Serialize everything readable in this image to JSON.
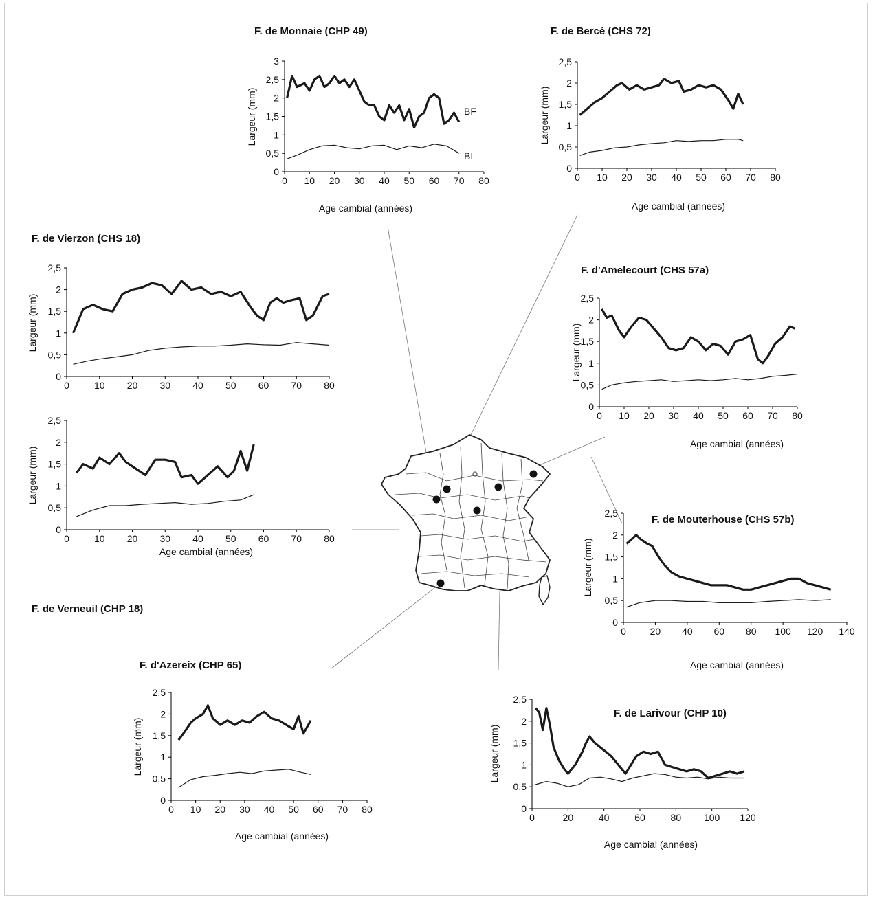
{
  "colors": {
    "bf_line": "#1a1a1a",
    "bi_line": "#1a1a1a",
    "map_stroke": "#222222",
    "site_marker": "#111111",
    "connector": "#777777"
  },
  "map": {
    "type": "outline-map-of-france",
    "site_markers": 7
  },
  "chart_data": [
    {
      "id": "monnaie",
      "type": "line",
      "title": "F. de Monnaie (CHP 49)",
      "xlabel": "Age cambial (années)",
      "ylabel": "Largeur (mm)",
      "xlim": [
        0,
        80
      ],
      "xticks": [
        "0",
        "10",
        "20",
        "30",
        "40",
        "50",
        "60",
        "70",
        "80"
      ],
      "ylim": [
        0,
        3
      ],
      "yticks": [
        "0",
        "0,5",
        "1",
        "1,5",
        "2",
        "2,5",
        "3"
      ],
      "annotations": [
        "BF",
        "BI"
      ],
      "series": [
        {
          "name": "BF",
          "x": [
            1,
            3,
            5,
            8,
            10,
            12,
            14,
            16,
            18,
            20,
            22,
            24,
            26,
            28,
            30,
            32,
            34,
            36,
            38,
            40,
            42,
            44,
            46,
            48,
            50,
            52,
            54,
            56,
            58,
            60,
            62,
            64,
            66,
            68,
            70
          ],
          "y": [
            2.0,
            2.6,
            2.3,
            2.4,
            2.2,
            2.5,
            2.6,
            2.3,
            2.4,
            2.6,
            2.4,
            2.5,
            2.3,
            2.5,
            2.2,
            1.9,
            1.8,
            1.8,
            1.5,
            1.4,
            1.8,
            1.6,
            1.8,
            1.4,
            1.7,
            1.2,
            1.5,
            1.6,
            2.0,
            2.1,
            2.0,
            1.3,
            1.4,
            1.6,
            1.35
          ]
        },
        {
          "name": "BI",
          "x": [
            1,
            5,
            10,
            15,
            20,
            25,
            30,
            35,
            40,
            45,
            50,
            55,
            60,
            65,
            70
          ],
          "y": [
            0.35,
            0.45,
            0.6,
            0.7,
            0.72,
            0.65,
            0.62,
            0.7,
            0.72,
            0.6,
            0.7,
            0.65,
            0.75,
            0.7,
            0.5
          ]
        }
      ]
    },
    {
      "id": "berce",
      "type": "line",
      "title": "F. de Bercé (CHS 72)",
      "xlabel": "Age cambial (années)",
      "ylabel": "Largeur (mm)",
      "xlim": [
        0,
        80
      ],
      "xticks": [
        "0",
        "10",
        "20",
        "30",
        "40",
        "50",
        "60",
        "70",
        "80"
      ],
      "ylim": [
        0,
        2.5
      ],
      "yticks": [
        "0",
        "0,5",
        "1",
        "1,5",
        "2",
        "2,5"
      ],
      "series": [
        {
          "x": [
            1,
            4,
            7,
            10,
            13,
            16,
            18,
            21,
            24,
            27,
            30,
            33,
            35,
            38,
            41,
            43,
            46,
            49,
            52,
            55,
            58,
            61,
            63,
            65,
            67
          ],
          "y": [
            1.25,
            1.4,
            1.55,
            1.65,
            1.8,
            1.95,
            2.0,
            1.85,
            1.95,
            1.85,
            1.9,
            1.95,
            2.1,
            2.0,
            2.05,
            1.8,
            1.85,
            1.95,
            1.9,
            1.95,
            1.85,
            1.6,
            1.4,
            1.75,
            1.5
          ]
        },
        {
          "x": [
            1,
            5,
            10,
            15,
            20,
            25,
            30,
            35,
            40,
            45,
            50,
            55,
            60,
            65,
            67
          ],
          "y": [
            0.3,
            0.38,
            0.42,
            0.48,
            0.5,
            0.55,
            0.58,
            0.6,
            0.65,
            0.63,
            0.65,
            0.65,
            0.68,
            0.68,
            0.65
          ]
        }
      ]
    },
    {
      "id": "vierzon",
      "type": "line",
      "title": "F. de Vierzon (CHS 18)",
      "xlabel": "",
      "ylabel": "Largeur (mm)",
      "xlim": [
        0,
        80
      ],
      "xticks": [
        "0",
        "10",
        "20",
        "30",
        "40",
        "50",
        "60",
        "70",
        "80"
      ],
      "ylim": [
        0,
        2.5
      ],
      "yticks": [
        "0",
        "0,5",
        "1",
        "1,5",
        "2",
        "2,5"
      ],
      "series": [
        {
          "x": [
            2,
            5,
            8,
            11,
            14,
            17,
            20,
            23,
            26,
            29,
            32,
            35,
            38,
            41,
            44,
            47,
            50,
            53,
            56,
            58,
            60,
            62,
            64,
            66,
            68,
            71,
            73,
            75,
            78,
            80
          ],
          "y": [
            1.0,
            1.55,
            1.65,
            1.55,
            1.5,
            1.9,
            2.0,
            2.05,
            2.15,
            2.1,
            1.9,
            2.2,
            2.0,
            2.05,
            1.9,
            1.95,
            1.85,
            1.95,
            1.6,
            1.4,
            1.3,
            1.7,
            1.8,
            1.7,
            1.75,
            1.8,
            1.3,
            1.4,
            1.85,
            1.9
          ]
        },
        {
          "x": [
            2,
            6,
            10,
            15,
            20,
            25,
            30,
            35,
            40,
            45,
            50,
            55,
            60,
            65,
            70,
            75,
            80
          ],
          "y": [
            0.28,
            0.35,
            0.4,
            0.45,
            0.5,
            0.6,
            0.65,
            0.68,
            0.7,
            0.7,
            0.72,
            0.75,
            0.73,
            0.72,
            0.78,
            0.75,
            0.72
          ]
        }
      ]
    },
    {
      "id": "verneuil",
      "type": "line",
      "title": "F. de Verneuil (CHP 18)",
      "xlabel": "Age cambial (années)",
      "ylabel": "Largeur (mm)",
      "xlim": [
        0,
        80
      ],
      "xticks": [
        "0",
        "10",
        "20",
        "30",
        "40",
        "50",
        "60",
        "70",
        "80"
      ],
      "ylim": [
        0,
        2.5
      ],
      "yticks": [
        "0",
        "0,5",
        "1",
        "1,5",
        "2",
        "2,5"
      ],
      "series": [
        {
          "x": [
            3,
            5,
            8,
            10,
            13,
            16,
            18,
            21,
            24,
            27,
            30,
            33,
            35,
            38,
            40,
            43,
            46,
            49,
            51,
            53,
            55,
            57
          ],
          "y": [
            1.3,
            1.5,
            1.4,
            1.65,
            1.5,
            1.75,
            1.55,
            1.4,
            1.25,
            1.6,
            1.6,
            1.55,
            1.2,
            1.25,
            1.05,
            1.25,
            1.45,
            1.2,
            1.35,
            1.8,
            1.35,
            1.95
          ]
        },
        {
          "x": [
            3,
            8,
            13,
            18,
            23,
            28,
            33,
            38,
            43,
            48,
            53,
            57
          ],
          "y": [
            0.3,
            0.45,
            0.55,
            0.55,
            0.58,
            0.6,
            0.62,
            0.58,
            0.6,
            0.65,
            0.68,
            0.8
          ]
        }
      ]
    },
    {
      "id": "amelecourt",
      "type": "line",
      "title": "F. d'Amelecourt (CHS 57a)",
      "xlabel": "Age cambial (années)",
      "ylabel": "Largeur (mm)",
      "xlim": [
        0,
        80
      ],
      "xticks": [
        "0",
        "10",
        "20",
        "30",
        "40",
        "50",
        "60",
        "70",
        "80"
      ],
      "ylim": [
        0,
        2.5
      ],
      "yticks": [
        "0",
        "0,5",
        "1",
        "1,5",
        "2",
        "2,5"
      ],
      "series": [
        {
          "x": [
            1,
            3,
            5,
            8,
            10,
            13,
            16,
            19,
            22,
            25,
            28,
            31,
            34,
            37,
            40,
            43,
            46,
            49,
            52,
            55,
            58,
            61,
            64,
            66,
            68,
            71,
            74,
            77,
            79
          ],
          "y": [
            2.25,
            2.05,
            2.1,
            1.75,
            1.6,
            1.85,
            2.05,
            2.0,
            1.8,
            1.6,
            1.35,
            1.3,
            1.35,
            1.6,
            1.5,
            1.3,
            1.45,
            1.4,
            1.2,
            1.5,
            1.55,
            1.65,
            1.1,
            1.0,
            1.15,
            1.45,
            1.6,
            1.85,
            1.8
          ]
        },
        {
          "x": [
            1,
            5,
            10,
            15,
            20,
            25,
            30,
            35,
            40,
            45,
            50,
            55,
            60,
            65,
            70,
            75,
            80
          ],
          "y": [
            0.4,
            0.5,
            0.55,
            0.58,
            0.6,
            0.62,
            0.58,
            0.6,
            0.62,
            0.6,
            0.62,
            0.65,
            0.62,
            0.65,
            0.7,
            0.72,
            0.75
          ]
        }
      ]
    },
    {
      "id": "mouterhouse",
      "type": "line",
      "title": "F. de Mouterhouse (CHS 57b)",
      "xlabel": "Age cambial (années)",
      "ylabel": "Largeur (mm)",
      "xlim": [
        0,
        140
      ],
      "xticks": [
        "0",
        "20",
        "40",
        "60",
        "80",
        "100",
        "120",
        "140"
      ],
      "ylim": [
        0,
        2.5
      ],
      "yticks": [
        "0",
        "0,5",
        "1",
        "1,5",
        "2",
        "2,5"
      ],
      "series": [
        {
          "x": [
            2,
            5,
            8,
            11,
            15,
            18,
            22,
            26,
            30,
            35,
            40,
            45,
            50,
            55,
            60,
            65,
            70,
            75,
            80,
            85,
            90,
            95,
            100,
            105,
            110,
            115,
            120,
            125,
            130
          ],
          "y": [
            1.8,
            1.9,
            2.0,
            1.9,
            1.8,
            1.75,
            1.5,
            1.3,
            1.15,
            1.05,
            1.0,
            0.95,
            0.9,
            0.85,
            0.85,
            0.85,
            0.8,
            0.75,
            0.75,
            0.8,
            0.85,
            0.9,
            0.95,
            1.0,
            1.0,
            0.9,
            0.85,
            0.8,
            0.75
          ]
        },
        {
          "x": [
            2,
            10,
            20,
            30,
            40,
            50,
            60,
            70,
            80,
            90,
            100,
            110,
            120,
            130
          ],
          "y": [
            0.35,
            0.45,
            0.5,
            0.5,
            0.48,
            0.48,
            0.45,
            0.45,
            0.45,
            0.48,
            0.5,
            0.52,
            0.5,
            0.52
          ]
        }
      ]
    },
    {
      "id": "azereix",
      "type": "line",
      "title": "F. d'Azereix (CHP 65)",
      "xlabel": "Age cambial (années)",
      "ylabel": "Largeur (mm)",
      "xlim": [
        0,
        80
      ],
      "xticks": [
        "0",
        "10",
        "20",
        "30",
        "40",
        "50",
        "60",
        "70",
        "80"
      ],
      "ylim": [
        0,
        2.5
      ],
      "yticks": [
        "0",
        "0,5",
        "1",
        "1,5",
        "2",
        "2,5"
      ],
      "series": [
        {
          "x": [
            3,
            5,
            8,
            10,
            13,
            15,
            17,
            20,
            23,
            26,
            29,
            32,
            35,
            38,
            41,
            44,
            47,
            50,
            52,
            54,
            57
          ],
          "y": [
            1.4,
            1.55,
            1.8,
            1.9,
            2.0,
            2.2,
            1.9,
            1.75,
            1.85,
            1.75,
            1.85,
            1.8,
            1.95,
            2.05,
            1.9,
            1.85,
            1.75,
            1.65,
            1.95,
            1.55,
            1.85
          ]
        },
        {
          "x": [
            3,
            8,
            13,
            18,
            23,
            28,
            33,
            38,
            43,
            48,
            53,
            57
          ],
          "y": [
            0.3,
            0.48,
            0.55,
            0.58,
            0.62,
            0.65,
            0.62,
            0.68,
            0.7,
            0.72,
            0.65,
            0.6
          ]
        }
      ]
    },
    {
      "id": "larivour",
      "type": "line",
      "title": "F. de Larivour (CHP 10)",
      "xlabel": "Age cambial (années)",
      "ylabel": "Largeur (mm)",
      "xlim": [
        0,
        120
      ],
      "xticks": [
        "0",
        "20",
        "40",
        "60",
        "80",
        "100",
        "120"
      ],
      "ylim": [
        0,
        2.5
      ],
      "yticks": [
        "0",
        "0,5",
        "1",
        "1,5",
        "2",
        "2,5"
      ],
      "series": [
        {
          "x": [
            2,
            4,
            6,
            8,
            10,
            12,
            15,
            18,
            20,
            24,
            28,
            30,
            32,
            35,
            38,
            41,
            44,
            48,
            52,
            55,
            58,
            62,
            66,
            70,
            74,
            78,
            82,
            86,
            90,
            94,
            98,
            102,
            106,
            110,
            114,
            118
          ],
          "y": [
            2.3,
            2.2,
            1.8,
            2.3,
            1.9,
            1.4,
            1.1,
            0.9,
            0.8,
            1.0,
            1.3,
            1.5,
            1.65,
            1.5,
            1.4,
            1.3,
            1.2,
            1.0,
            0.8,
            1.0,
            1.2,
            1.3,
            1.25,
            1.3,
            1.0,
            0.95,
            0.9,
            0.85,
            0.9,
            0.85,
            0.7,
            0.75,
            0.8,
            0.85,
            0.8,
            0.85
          ]
        },
        {
          "x": [
            2,
            8,
            14,
            20,
            26,
            32,
            38,
            44,
            50,
            56,
            62,
            68,
            74,
            80,
            86,
            92,
            98,
            104,
            110,
            118
          ],
          "y": [
            0.55,
            0.62,
            0.58,
            0.5,
            0.55,
            0.7,
            0.72,
            0.68,
            0.62,
            0.7,
            0.75,
            0.8,
            0.78,
            0.72,
            0.7,
            0.72,
            0.68,
            0.72,
            0.7,
            0.7
          ]
        }
      ]
    }
  ]
}
